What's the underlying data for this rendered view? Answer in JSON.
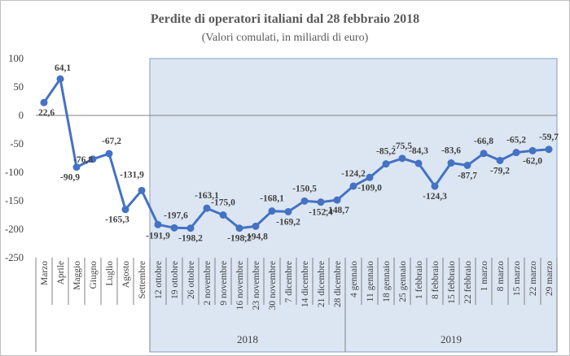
{
  "chart_data": {
    "type": "line",
    "title": "Perdite di operatori italiani dal 28 febbraio 2018",
    "subtitle": "(Valori comulati, in miliardi di euro)",
    "ylim": [
      -250,
      100
    ],
    "yticks": [
      "100",
      "50",
      "0",
      "-50",
      "-100",
      "-150",
      "-200",
      "-250"
    ],
    "ytick_values": [
      100,
      50,
      0,
      -50,
      -100,
      -150,
      -200,
      -250
    ],
    "categories": [
      "Marzo",
      "Aprile",
      "Maggio",
      "Giugno",
      "Luglio",
      "Agosto",
      "Settembre",
      "12 ottobre",
      "19 ottobre",
      "26 ottobre",
      "2 novembre",
      "9 novembre",
      "16 novembre",
      "23 novembre",
      "30 novembre",
      "7 dicembre",
      "14 dicembre",
      "21 dicembre",
      "28 dicembre",
      "4 gennaio",
      "11 gennaio",
      "18 gennaio",
      "25 gennaio",
      "1 febbraio",
      "8 febbraio",
      "15 febbraio",
      "22 febbraio",
      "1 marzo",
      "8 marzo",
      "15 marzo",
      "22 marzo",
      "29 marzo"
    ],
    "values": [
      22.6,
      64.1,
      -90.9,
      -76.8,
      -67.2,
      -165.3,
      -131.9,
      -191.9,
      -197.6,
      -198.2,
      -163.1,
      -175.0,
      -198.2,
      -194.8,
      -168.1,
      -169.2,
      -150.5,
      -152.4,
      -148.7,
      -124.2,
      -109.0,
      -85.2,
      -75.5,
      -84.3,
      -124.3,
      -83.6,
      -87.7,
      -66.8,
      -79.2,
      -65.2,
      -62.0,
      -59.7
    ],
    "data_labels": [
      "22,6",
      "64,1",
      "-90,9",
      "-76,8",
      "-67,2",
      "-165,3",
      "-131,9",
      "-191,9",
      "-197,6",
      "-198,2",
      "-163,1",
      "-175,0",
      "-198,2",
      "-194,8",
      "-168,1",
      "-169,2",
      "-150,5",
      "-152,4",
      "-148,7",
      "-124,2",
      "-109,0",
      "-85,2",
      "-75,5",
      "-84,3",
      "-124,3",
      "-83,6",
      "-87,7",
      "-66,8",
      "-79,2",
      "-65,2",
      "-62,0",
      "-59,7"
    ],
    "groups": [
      {
        "label": "2018",
        "start": 7,
        "end": 18
      },
      {
        "label": "2019",
        "start": 19,
        "end": 31
      }
    ],
    "highlight_from_index": 7,
    "grid": false,
    "colors": {
      "line": "#4472c4",
      "shade": "#dce6f2",
      "shade_border": "#7f9fcf",
      "axis": "#808080"
    }
  }
}
